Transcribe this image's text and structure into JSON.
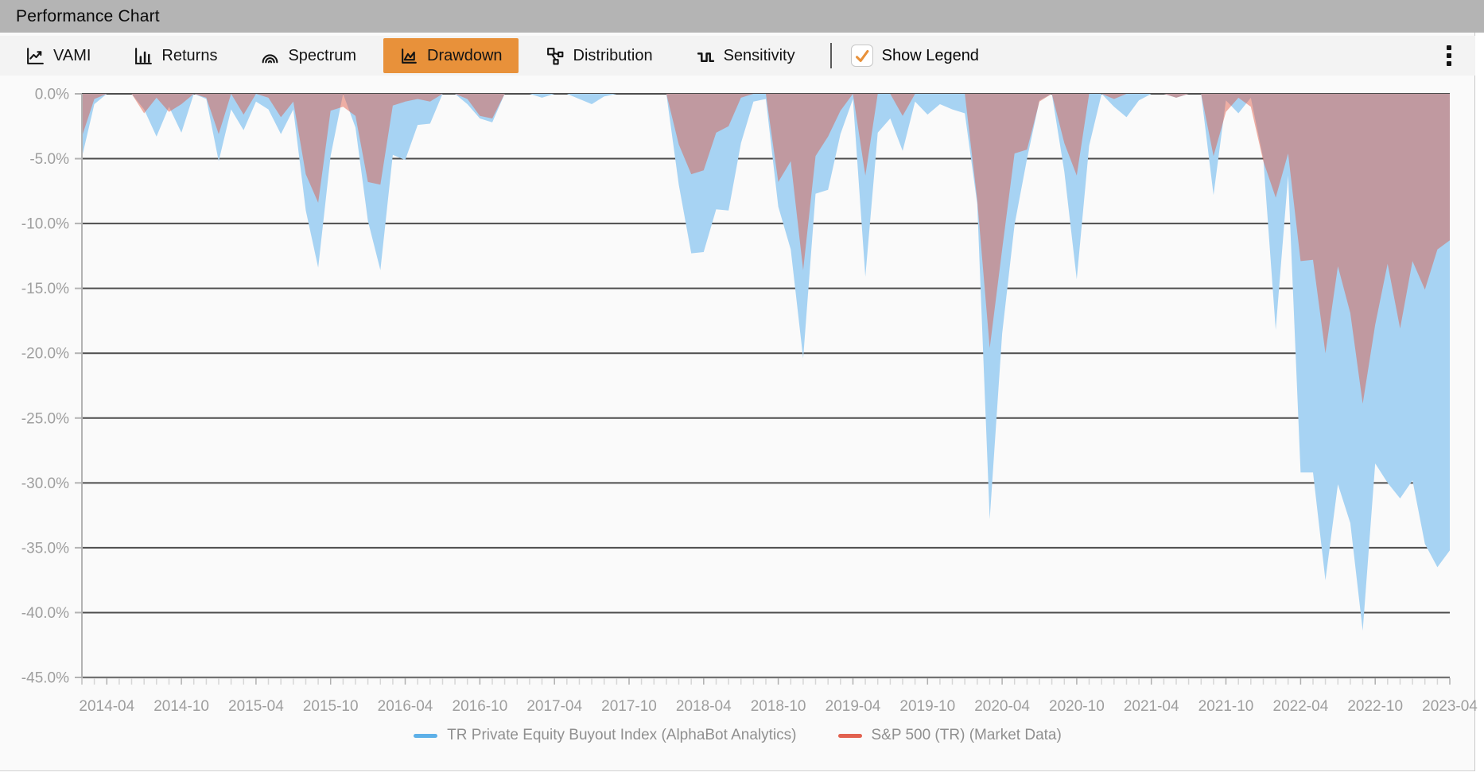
{
  "window": {
    "title": "Performance Chart"
  },
  "toolbar": {
    "tabs": [
      {
        "label": "VAMI",
        "icon": "line-chart-icon",
        "selected": false
      },
      {
        "label": "Returns",
        "icon": "bar-chart-icon",
        "selected": false
      },
      {
        "label": "Spectrum",
        "icon": "spectrum-arcs-icon",
        "selected": false
      },
      {
        "label": "Drawdown",
        "icon": "area-chart-icon",
        "selected": true
      },
      {
        "label": "Distribution",
        "icon": "branch-nodes-icon",
        "selected": false
      },
      {
        "label": "Sensitivity",
        "icon": "pulse-wave-icon",
        "selected": false
      }
    ],
    "selected_tab_color": "#e8913a",
    "show_legend": {
      "label": "Show Legend",
      "checked": true,
      "check_color": "#e8913a"
    },
    "menu_icon": "kebab-menu-icon"
  },
  "chart_data": {
    "type": "area",
    "title": "",
    "xlabel": "",
    "ylabel": "",
    "ylim": [
      -45,
      0
    ],
    "y_tick_step": 5,
    "y_ticks": [
      "0.0%",
      "-5.0%",
      "-10.0%",
      "-15.0%",
      "-20.0%",
      "-25.0%",
      "-30.0%",
      "-35.0%",
      "-40.0%",
      "-45.0%"
    ],
    "grid": true,
    "legend_position": "bottom",
    "x_tick_start_index": 2,
    "x_tick_every": 6,
    "x": [
      "2014-02",
      "2014-03",
      "2014-04",
      "2014-05",
      "2014-06",
      "2014-07",
      "2014-08",
      "2014-09",
      "2014-10",
      "2014-11",
      "2014-12",
      "2015-01",
      "2015-02",
      "2015-03",
      "2015-04",
      "2015-05",
      "2015-06",
      "2015-07",
      "2015-08",
      "2015-09",
      "2015-10",
      "2015-11",
      "2015-12",
      "2016-01",
      "2016-02",
      "2016-03",
      "2016-04",
      "2016-05",
      "2016-06",
      "2016-07",
      "2016-08",
      "2016-09",
      "2016-10",
      "2016-11",
      "2016-12",
      "2017-01",
      "2017-02",
      "2017-03",
      "2017-04",
      "2017-05",
      "2017-06",
      "2017-07",
      "2017-08",
      "2017-09",
      "2017-10",
      "2017-11",
      "2017-12",
      "2018-01",
      "2018-02",
      "2018-03",
      "2018-04",
      "2018-05",
      "2018-06",
      "2018-07",
      "2018-08",
      "2018-09",
      "2018-10",
      "2018-11",
      "2018-12",
      "2019-01",
      "2019-02",
      "2019-03",
      "2019-04",
      "2019-05",
      "2019-06",
      "2019-07",
      "2019-08",
      "2019-09",
      "2019-10",
      "2019-11",
      "2019-12",
      "2020-01",
      "2020-02",
      "2020-03",
      "2020-04",
      "2020-05",
      "2020-06",
      "2020-07",
      "2020-08",
      "2020-09",
      "2020-10",
      "2020-11",
      "2020-12",
      "2021-01",
      "2021-02",
      "2021-03",
      "2021-04",
      "2021-05",
      "2021-06",
      "2021-07",
      "2021-08",
      "2021-09",
      "2021-10",
      "2021-11",
      "2021-12",
      "2022-01",
      "2022-02",
      "2022-03",
      "2022-04",
      "2022-05",
      "2022-06",
      "2022-07",
      "2022-08",
      "2022-09",
      "2022-10",
      "2022-11",
      "2022-12",
      "2023-01",
      "2023-02",
      "2023-03",
      "2023-04"
    ],
    "series": [
      {
        "name": "TR Private Equity Buyout Index (AlphaBot Analytics)",
        "fill": "#a7d3f3",
        "line": "#5db0e8",
        "values": [
          -4.9,
          -0.8,
          0,
          0,
          0,
          -1.2,
          -3.3,
          -1.0,
          -3.0,
          0,
          -0.4,
          -5.2,
          -1.2,
          -2.8,
          -0.6,
          -1.2,
          -3.1,
          -1.2,
          -9.0,
          -13.4,
          -4.8,
          0,
          -2.6,
          -9.8,
          -13.6,
          -4.7,
          -5.1,
          -2.4,
          -2.3,
          0,
          0,
          -0.8,
          -1.9,
          -2.2,
          0,
          0,
          0,
          -0.3,
          0,
          0,
          -0.4,
          -0.8,
          -0.2,
          0,
          0,
          0,
          0,
          0,
          -7.0,
          -12.3,
          -12.2,
          -8.9,
          -9.0,
          -3.8,
          -0.6,
          -0.4,
          -8.7,
          -12.0,
          -20.4,
          -7.7,
          -7.4,
          -3.1,
          -0.4,
          -14.1,
          -3.0,
          -1.9,
          -4.4,
          -0.6,
          -1.6,
          -0.8,
          -1.2,
          -1.5,
          -8.5,
          -32.8,
          -18.5,
          -10.1,
          -5.0,
          -0.5,
          0,
          -6.0,
          -14.3,
          -4.0,
          0,
          -1.0,
          -1.8,
          -0.5,
          0,
          0,
          -0.3,
          0,
          0,
          -7.8,
          -0.5,
          -1.5,
          -0.3,
          -5.0,
          -18.2,
          -6.3,
          -29.2,
          -29.2,
          -37.5,
          -30.1,
          -33.1,
          -41.4,
          -28.5,
          -30.0,
          -31.2,
          -29.8,
          -34.7,
          -36.5,
          -35.2
        ]
      },
      {
        "name": "S&P 500 (TR) (Market Data)",
        "fill": "rgba(224,82,60,0.45)",
        "line": "#e2614f",
        "values": [
          -3.3,
          -0.4,
          0,
          0,
          0,
          -1.5,
          -0.3,
          -1.4,
          -0.8,
          0,
          -0.3,
          -3.1,
          0,
          -1.6,
          0,
          -0.3,
          -1.8,
          -0.6,
          -6.2,
          -8.4,
          -1.3,
          -1.0,
          -1.7,
          -6.8,
          -7.0,
          -0.9,
          -0.6,
          -0.4,
          -0.6,
          0,
          0,
          -0.4,
          -1.7,
          -1.9,
          0,
          0,
          0,
          0,
          0,
          0,
          0,
          0,
          0,
          0,
          0,
          0,
          0,
          0,
          -3.9,
          -6.2,
          -5.9,
          -3.0,
          -2.5,
          -0.3,
          0,
          0,
          -6.8,
          -5.2,
          -13.6,
          -4.8,
          -3.3,
          -1.3,
          0,
          -6.3,
          0,
          0,
          -1.7,
          0,
          0,
          0,
          0,
          0,
          -8.2,
          -19.6,
          -12.0,
          -4.6,
          -4.3,
          -0.6,
          0,
          -3.8,
          -6.3,
          0,
          0,
          -0.4,
          0,
          0,
          0,
          0,
          -0.3,
          0,
          0,
          -4.8,
          -1.4,
          -0.3,
          -1.0,
          -5.2,
          -8.0,
          -4.6,
          -12.9,
          -12.8,
          -20.0,
          -13.3,
          -16.9,
          -23.9,
          -17.8,
          -13.1,
          -18.1,
          -12.9,
          -15.1,
          -12.0,
          -11.3
        ]
      }
    ]
  }
}
